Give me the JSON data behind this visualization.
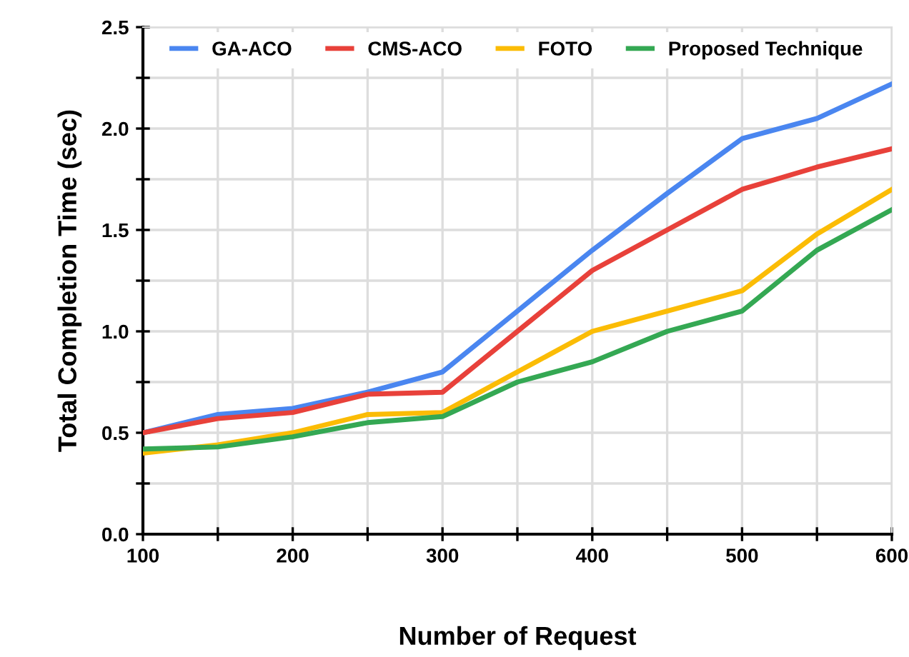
{
  "chart_data": {
    "type": "line",
    "xlabel": "Number of Request",
    "ylabel": "Total Completion Time (sec)",
    "x": [
      100,
      150,
      200,
      250,
      300,
      350,
      400,
      450,
      500,
      550,
      600
    ],
    "series": [
      {
        "name": "GA-ACO",
        "color": "#4a86f0",
        "values": [
          0.5,
          0.59,
          0.62,
          0.7,
          0.8,
          1.1,
          1.4,
          1.68,
          1.95,
          2.05,
          2.22
        ]
      },
      {
        "name": "CMS-ACO",
        "color": "#e8413a",
        "values": [
          0.5,
          0.57,
          0.6,
          0.69,
          0.7,
          1.0,
          1.3,
          1.5,
          1.7,
          1.81,
          1.9
        ]
      },
      {
        "name": "FOTO",
        "color": "#fbbc05",
        "values": [
          0.4,
          0.44,
          0.5,
          0.59,
          0.6,
          0.8,
          1.0,
          1.1,
          1.2,
          1.48,
          1.7
        ]
      },
      {
        "name": "Proposed Technique",
        "color": "#34a853",
        "values": [
          0.42,
          0.43,
          0.48,
          0.55,
          0.58,
          0.75,
          0.85,
          1.0,
          1.1,
          1.4,
          1.6
        ]
      }
    ],
    "xlim": [
      100,
      600
    ],
    "xticks": [
      100,
      {
        "value": 150,
        "label": null
      },
      200,
      {
        "value": 250,
        "label": null
      },
      300,
      {
        "value": 350,
        "label": null
      },
      400,
      {
        "value": 450,
        "label": null
      },
      500,
      {
        "value": 550,
        "label": null
      },
      600
    ],
    "ylim": [
      0,
      2.5
    ],
    "yticks": [
      {
        "value": 0,
        "label": "0.0"
      },
      {
        "value": 0.25,
        "label": null
      },
      0.5,
      {
        "value": 0.75,
        "label": null
      },
      {
        "value": 1,
        "label": "1.0"
      },
      {
        "value": 1.25,
        "label": null
      },
      1.5,
      {
        "value": 1.75,
        "label": null
      },
      {
        "value": 2,
        "label": "2.0"
      },
      {
        "value": 2.25,
        "label": null
      },
      2.5
    ],
    "grid": true,
    "legend": "top",
    "line_style": "solid",
    "marker": "none"
  }
}
